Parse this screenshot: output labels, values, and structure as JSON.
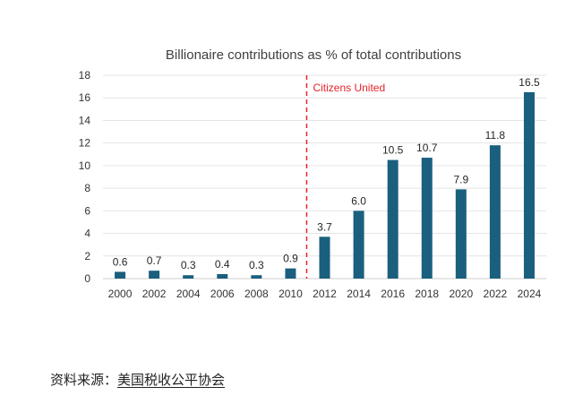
{
  "chart_data": {
    "type": "bar",
    "title": "Billionaire contributions as % of total contributions",
    "xlabel": "",
    "ylabel": "",
    "categories": [
      "2000",
      "2002",
      "2004",
      "2006",
      "2008",
      "2010",
      "2012",
      "2014",
      "2016",
      "2018",
      "2020",
      "2022",
      "2024"
    ],
    "values": [
      0.6,
      0.7,
      0.3,
      0.4,
      0.3,
      0.9,
      3.7,
      6.0,
      10.5,
      10.7,
      7.9,
      11.8,
      16.5
    ],
    "data_labels": [
      "0.6",
      "0.7",
      "0.3",
      "0.4",
      "0.3",
      "0.9",
      "3.7",
      "6.0",
      "10.5",
      "10.7",
      "7.9",
      "11.8",
      "16.5"
    ],
    "ylim": [
      0,
      18
    ],
    "yticks": [
      0,
      2,
      4,
      6,
      8,
      10,
      12,
      14,
      16,
      18
    ],
    "grid": true,
    "legend": "none",
    "bar_color": "#1a5f7e",
    "annotation": {
      "text": "Citizens United",
      "after_category": "2010",
      "line_style": "dashed",
      "color": "#e8222a"
    }
  },
  "source": {
    "label": "资料来源：",
    "link_text": "美国税收公平协会"
  }
}
